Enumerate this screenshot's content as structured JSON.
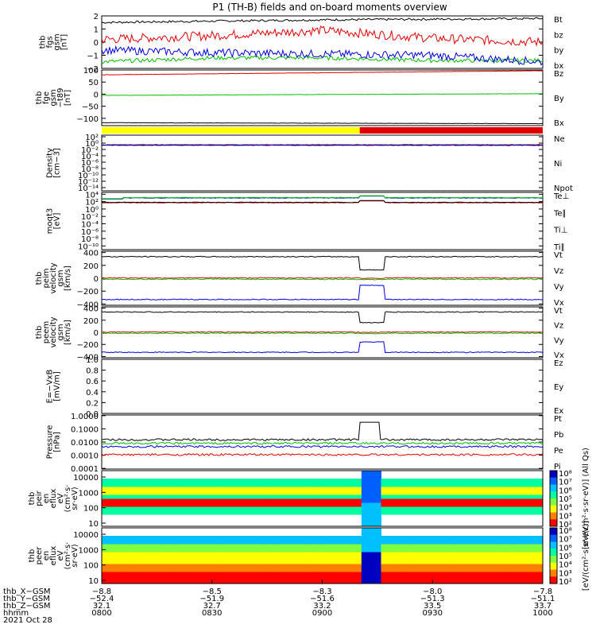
{
  "title": "P1 (TH-B) fields and on-board moments overview",
  "colors": {
    "black": "#000000",
    "red": "#e00000",
    "green": "#00c000",
    "blue": "#0000e0",
    "yellow": "#ffff00",
    "darkred": "#a00000"
  },
  "chart_data": [
    {
      "type": "line",
      "panel": "fgs_gsm",
      "ylabel": [
        "thb",
        "fgs",
        "gsm",
        "[nT]"
      ],
      "ylim": [
        -2,
        2
      ],
      "yticks": [
        "2",
        "1",
        "0",
        "−1",
        "−2"
      ],
      "tick_values": [
        2,
        1,
        0,
        -1,
        -2
      ],
      "series": [
        {
          "name": "Bt",
          "color": "#000000",
          "base": 1.55,
          "noise": 0.08,
          "values_at_ticks": [
            1.5,
            1.6,
            1.7,
            1.75,
            1.8
          ]
        },
        {
          "name": "bz",
          "color": "#e00000",
          "base": 0.3,
          "noise": 0.35,
          "values_at_ticks": [
            0.2,
            0.5,
            0.9,
            0.3,
            0.0
          ]
        },
        {
          "name": "by",
          "color": "#00c000",
          "base": -1.4,
          "noise": 0.15,
          "values_at_ticks": [
            -1.5,
            -1.2,
            -1.2,
            -1.4,
            -1.4
          ]
        },
        {
          "name": "bx",
          "color": "#0000e0",
          "base": -0.8,
          "noise": 0.3,
          "values_at_ticks": [
            -0.6,
            -0.8,
            -0.9,
            -1.0,
            -1.5
          ]
        }
      ]
    },
    {
      "type": "line",
      "panel": "fge_gsm",
      "ylabel": [
        "thb",
        "fge",
        "gsm",
        "−t89",
        "[nT]"
      ],
      "ylim": [
        -130,
        100
      ],
      "yticks": [
        "100",
        "50",
        "0",
        "−50",
        "−100"
      ],
      "tick_values": [
        100,
        50,
        0,
        -50,
        -100
      ],
      "series": [
        {
          "name": "Bz",
          "color": "#e00000",
          "start": 80,
          "end": 97
        },
        {
          "name": "By",
          "color": "#00c000",
          "start": -5,
          "end": 2
        },
        {
          "name": "Bx",
          "color": "#000000",
          "start": -118,
          "end": -122
        }
      ]
    },
    {
      "type": "bar",
      "panel": "mode_bar",
      "segments": [
        {
          "from": 0,
          "to": 0.585,
          "color": "#ffff00"
        },
        {
          "from": 0.585,
          "to": 1,
          "color": "#e00000"
        }
      ]
    },
    {
      "type": "line",
      "panel": "density",
      "ylabel": [
        "Density",
        "[cm−3]"
      ],
      "scale": "log",
      "yticks": [
        "10²",
        "10⁰",
        "10⁻²",
        "10⁻⁴",
        "10⁻⁶",
        "10⁻⁸",
        "10⁻¹⁰",
        "10⁻¹²",
        "10⁻¹⁴"
      ],
      "tick_exponents": [
        2,
        0,
        -2,
        -4,
        -6,
        -8,
        -10,
        -12,
        -14
      ],
      "ylim": [
        -15,
        2.5
      ],
      "series": [
        {
          "name": "Ne",
          "color": "#e00000",
          "value": 0.3
        },
        {
          "name": "Ni",
          "color": "#000000",
          "value": 0.25
        },
        {
          "name": "Npot",
          "color": "#0000e0",
          "value": 0.2
        }
      ]
    },
    {
      "type": "line",
      "panel": "temperature",
      "ylabel": [
        "moqt3",
        "[eV]"
      ],
      "scale": "log",
      "yticks": [
        "10⁴",
        "10²",
        "10⁰",
        "10⁻²",
        "10⁻⁴",
        "10⁻⁶",
        "10⁻⁸",
        "10⁻¹⁰"
      ],
      "tick_exponents": [
        4,
        2,
        0,
        -2,
        -4,
        -6,
        -8,
        -10
      ],
      "ylim": [
        -11,
        4.5
      ],
      "series": [
        {
          "name": "Te⊥",
          "color": "#e00000",
          "value": 1.7
        },
        {
          "name": "Te∥",
          "color": "#000000",
          "value": 1.8
        },
        {
          "name": "Ti⊥",
          "color": "#0000e0",
          "value": 3.0
        },
        {
          "name": "Ti∥",
          "color": "#00c000",
          "value": 3.1
        }
      ]
    },
    {
      "type": "line",
      "panel": "peim_velocity",
      "ylabel": [
        "thb",
        "peim",
        "velocity",
        "gsm",
        "[km/s]"
      ],
      "ylim": [
        -420,
        420
      ],
      "yticks": [
        "400",
        "200",
        "0",
        "−200",
        "−400"
      ],
      "tick_values": [
        400,
        200,
        0,
        -200,
        -400
      ],
      "series": [
        {
          "name": "Vt",
          "color": "#000000",
          "value": 335,
          "gap_value": 130
        },
        {
          "name": "Vz",
          "color": "#e00000",
          "value": 5,
          "gap_value": 0
        },
        {
          "name": "Vy",
          "color": "#00c000",
          "value": -15,
          "gap_value": -20
        },
        {
          "name": "Vx",
          "color": "#0000e0",
          "value": -330,
          "gap_value": -110
        }
      ]
    },
    {
      "type": "line",
      "panel": "peem_velocity",
      "ylabel": [
        "thb",
        "peem",
        "velocity",
        "gsm",
        "[km/s]"
      ],
      "ylim": [
        -420,
        420
      ],
      "yticks": [
        "400",
        "200",
        "0",
        "−200",
        "−400"
      ],
      "tick_values": [
        400,
        200,
        0,
        -200,
        -400
      ],
      "series": [
        {
          "name": "Vt",
          "color": "#000000",
          "value": 335,
          "gap_value": 160
        },
        {
          "name": "Vz",
          "color": "#e00000",
          "value": 5,
          "gap_value": 0
        },
        {
          "name": "Vy",
          "color": "#00c000",
          "value": -15,
          "gap_value": -20
        },
        {
          "name": "Vx",
          "color": "#0000e0",
          "value": -330,
          "gap_value": -160
        }
      ]
    },
    {
      "type": "line",
      "panel": "efield",
      "ylabel": [
        "E=−VxB",
        "[mV/m]"
      ],
      "ylim": [
        0,
        1
      ],
      "yticks": [
        "1.0",
        "0.8",
        "0.6",
        "0.4",
        "0.2",
        "0.0"
      ],
      "tick_values": [
        1.0,
        0.8,
        0.6,
        0.4,
        0.2,
        0.0
      ],
      "series": [
        {
          "name": "Ez",
          "color": "#e00000"
        },
        {
          "name": "Ey",
          "color": "#00c000"
        },
        {
          "name": "Ex",
          "color": "#0000e0"
        }
      ]
    },
    {
      "type": "line",
      "panel": "pressure",
      "ylabel": [
        "Pressure",
        "[nPa]"
      ],
      "scale": "log",
      "yticks": [
        "1.0000",
        "0.1000",
        "0.0100",
        "0.0010",
        "0.0001"
      ],
      "tick_exponents": [
        0,
        -1,
        -2,
        -3,
        -4
      ],
      "ylim": [
        -4.05,
        0.05
      ],
      "series": [
        {
          "name": "Pt",
          "color": "#000000",
          "value": 0.015
        },
        {
          "name": "Pb",
          "color": "#e00000",
          "value": 0.0011
        },
        {
          "name": "Pe",
          "color": "#00c000",
          "value": 0.008
        },
        {
          "name": "Pi",
          "color": "#0000e0",
          "value": 0.0045
        }
      ]
    },
    {
      "type": "heatmap",
      "panel": "peir_spectrogram",
      "ylabel": [
        "thb",
        "peir",
        "en",
        "eflux",
        "eV",
        "(cm²·s·",
        "sr·eV)"
      ],
      "yticks": [
        "10000",
        "1000",
        "100",
        "10"
      ],
      "colorbar_ticks": [
        "10⁸",
        "10⁷",
        "10⁶",
        "10⁵",
        "10⁴",
        "10³",
        "10²"
      ],
      "colorbar_label": "[eV/(cm²·s·sr·eV)] (All Qs)"
    },
    {
      "type": "heatmap",
      "panel": "peer_spectrogram",
      "ylabel": [
        "thb",
        "peer",
        "en",
        "eflux",
        "eV",
        "(cm²·s·",
        "sr·eV)"
      ],
      "yticks": [
        "10000",
        "1000",
        "100",
        "10"
      ],
      "colorbar_ticks": [
        "10⁸",
        "10⁷",
        "10⁶",
        "10⁵",
        "10⁴",
        "10³",
        "10²"
      ],
      "colorbar_label": "[eV/(cm²·s·sr·eV)]"
    }
  ],
  "xaxis": {
    "row_labels": [
      "thb_X−GSM",
      "thb_Y−GSM",
      "thb_Z−GSM",
      "hhmm",
      "2021 Oct 28"
    ],
    "ticks": [
      {
        "x": "−8.8",
        "y": "−52.4",
        "z": "32.1",
        "t": "0800"
      },
      {
        "x": "−8.5",
        "y": "−51.9",
        "z": "32.7",
        "t": "0830"
      },
      {
        "x": "−8.3",
        "y": "−51.6",
        "z": "33.2",
        "t": "0900"
      },
      {
        "x": "−8.0",
        "y": "−51.3",
        "z": "33.5",
        "t": "0930"
      },
      {
        "x": "−7.8",
        "y": "−51.1",
        "z": "33.7",
        "t": "1000"
      }
    ]
  }
}
